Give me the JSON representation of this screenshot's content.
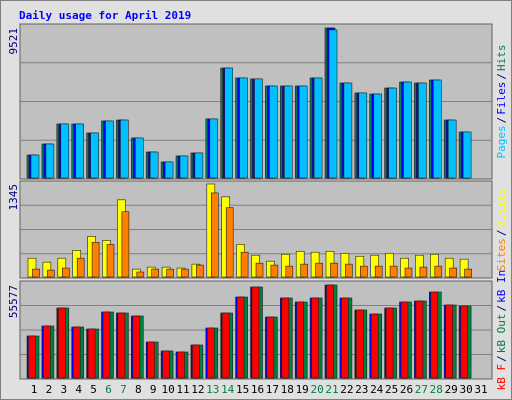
{
  "chart_data": {
    "type": "bar",
    "title": "Daily usage for April 2019",
    "categories": [
      "1",
      "2",
      "3",
      "4",
      "5",
      "6",
      "7",
      "8",
      "9",
      "10",
      "11",
      "12",
      "13",
      "14",
      "15",
      "16",
      "17",
      "18",
      "19",
      "20",
      "21",
      "22",
      "23",
      "24",
      "25",
      "26",
      "27",
      "28",
      "29",
      "30",
      "31"
    ],
    "weekend": [
      "6",
      "7",
      "13",
      "14",
      "20",
      "21",
      "27",
      "28"
    ],
    "weekend_color": "#008040",
    "label_color": "#000080",
    "legend_separator": "/",
    "panels": [
      {
        "ylim": [
          0,
          9521
        ],
        "yticks": [
          9521
        ],
        "series": [
          {
            "name": "Pages",
            "color": "#00c0ff",
            "values": [
              1460,
              2160,
              3430,
              3430,
              2860,
              3620,
              3680,
              2540,
              1650,
              1020,
              1400,
              1590,
              3750,
              6980,
              6350,
              6290,
              5840,
              5840,
              5840,
              6350,
              9400,
              6030,
              5400,
              5330,
              5710,
              6090,
              6030,
              6220,
              3680,
              2920,
              null
            ]
          },
          {
            "name": "Files",
            "color": "#0000ff",
            "values": [
              1460,
              2160,
              3430,
              3430,
              2860,
              3620,
              3680,
              2540,
              1650,
              1020,
              1400,
              1590,
              3750,
              6980,
              6350,
              6290,
              5840,
              5840,
              5840,
              6350,
              9521,
              6030,
              5400,
              5330,
              5710,
              6090,
              6030,
              6220,
              3680,
              2920,
              null
            ]
          },
          {
            "name": "Hits",
            "color": "#00805c",
            "values": [
              1460,
              2160,
              3430,
              3430,
              2860,
              3620,
              3680,
              2540,
              1650,
              1020,
              1400,
              1590,
              3750,
              6980,
              6350,
              6290,
              5840,
              5840,
              5840,
              6350,
              9521,
              6030,
              5400,
              5330,
              5710,
              6090,
              6030,
              6220,
              3680,
              2920,
              null
            ]
          }
        ]
      },
      {
        "ylim": [
          0,
          1345
        ],
        "yticks": [
          1345
        ],
        "series": [
          {
            "name": "Sites",
            "color": "#ff8000",
            "values": [
              114,
              100,
              129,
              272,
              501,
              472,
              944,
              72,
              114,
              114,
              114,
              172,
              1216,
              1002,
              358,
              200,
              172,
              157,
              186,
              200,
              200,
              186,
              157,
              157,
              157,
              129,
              143,
              157,
              129,
              114,
              null
            ]
          },
          {
            "name": "Visits",
            "color": "#ffff00",
            "values": [
              272,
              215,
              272,
              386,
              587,
              530,
              1116,
              114,
              143,
              143,
              129,
              186,
              1345,
              1159,
              472,
              315,
              229,
              329,
              372,
              358,
              372,
              343,
              300,
              315,
              343,
              272,
              315,
              329,
              272,
              258,
              null
            ]
          }
        ]
      },
      {
        "ylim": [
          0,
          55577
        ],
        "yticks": [
          55577
        ],
        "series": [
          {
            "name": "kB F",
            "color": "#ff0000",
            "values": [
              25100,
              31080,
              41830,
              30480,
              29280,
              39440,
              38840,
              37050,
              21510,
              16140,
              15540,
              19720,
              29880,
              38840,
              48400,
              54380,
              36450,
              47810,
              45410,
              47810,
              55577,
              47810,
              40640,
              38240,
              41830,
              45410,
              46010,
              51390,
              43620,
              43030,
              null
            ]
          },
          {
            "name": "kB Out",
            "color": "#008040",
            "values": [
              25100,
              31080,
              41830,
              30480,
              29280,
              39440,
              38840,
              37050,
              21510,
              16140,
              15540,
              19720,
              29880,
              38840,
              48400,
              54380,
              36450,
              47810,
              45410,
              47810,
              55577,
              47810,
              40640,
              38240,
              41830,
              45410,
              46010,
              51390,
              43620,
              43030,
              null
            ]
          },
          {
            "name": "kB In",
            "color": "#0000ff",
            "values": [
              25100,
              31080,
              41830,
              30480,
              29280,
              39440,
              38840,
              37050,
              21510,
              16140,
              15540,
              19720,
              29880,
              38840,
              48400,
              54380,
              36450,
              47810,
              45410,
              47810,
              55577,
              47810,
              40640,
              38240,
              41830,
              45410,
              46010,
              51390,
              43620,
              43030,
              null
            ]
          }
        ]
      }
    ]
  }
}
